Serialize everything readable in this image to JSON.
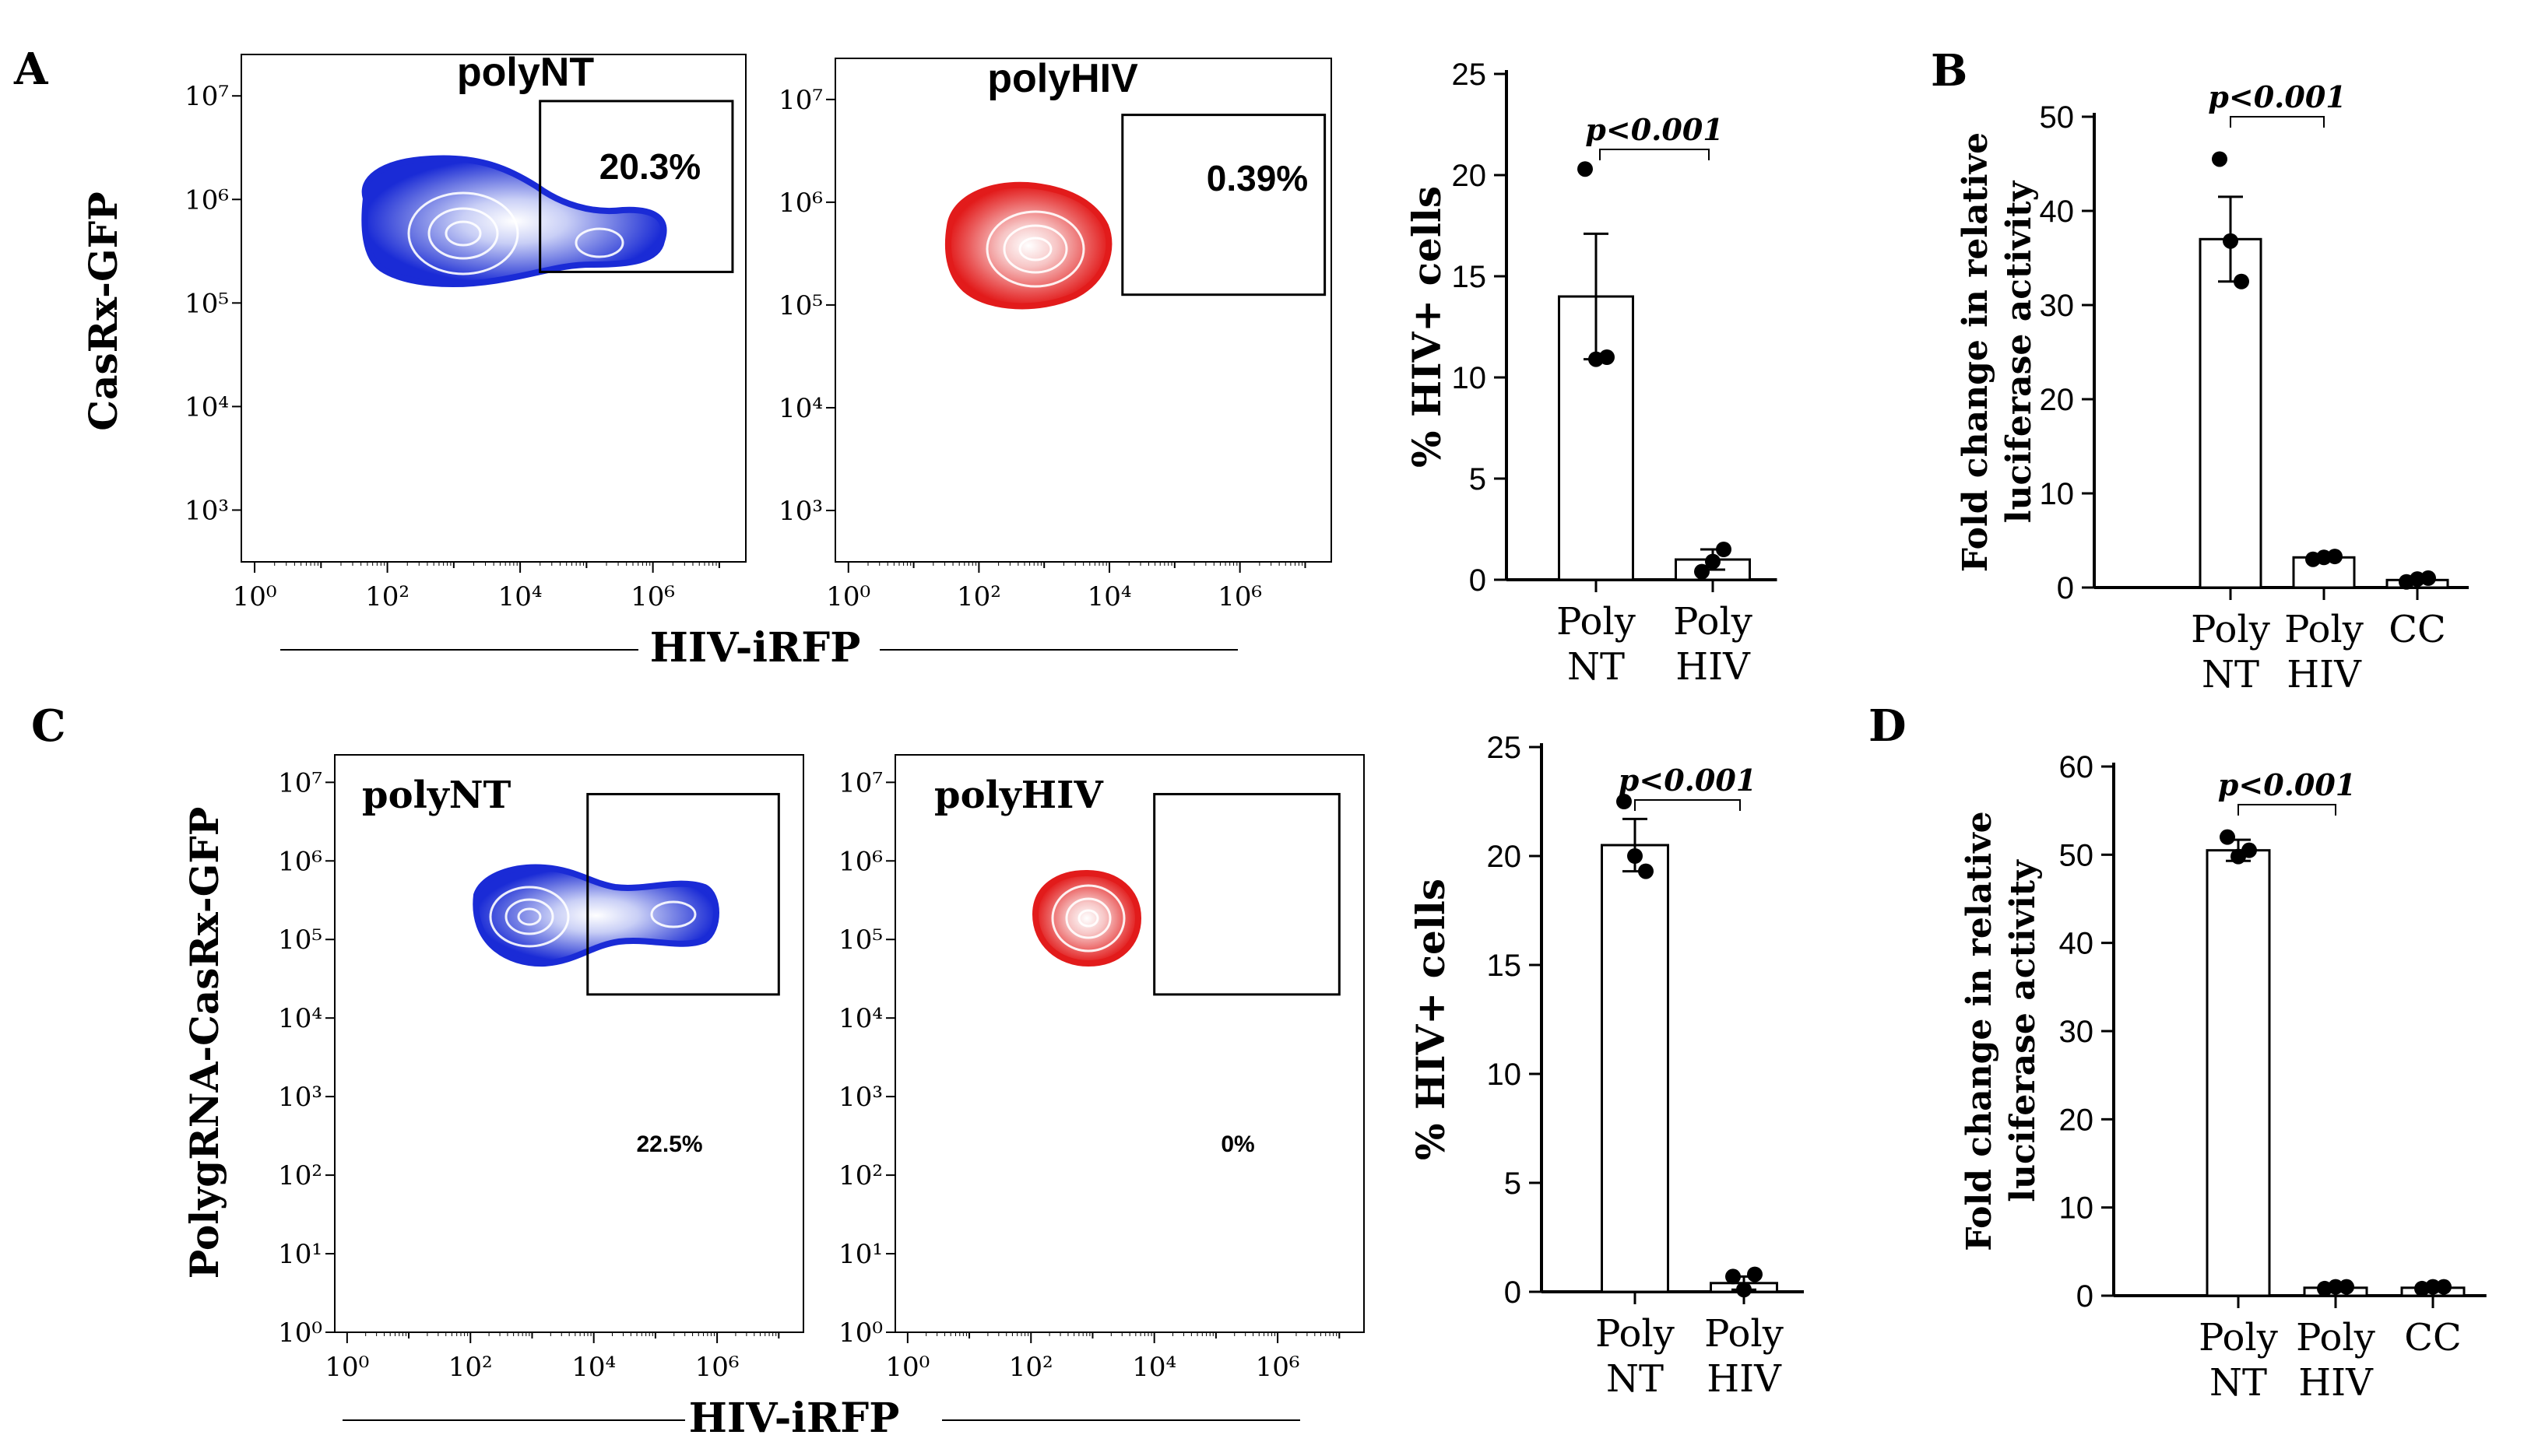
{
  "panel_labels": [
    "A",
    "B",
    "C",
    "D"
  ],
  "colors": {
    "nt": "#1a2bd6",
    "hiv": "#e21b1b",
    "axis": "#000000",
    "bar_fill": "#ffffff"
  },
  "chart_data": [
    {
      "id": "A-flow-polyNT",
      "type": "scatter",
      "subtype": "flow-contour",
      "title": "polyNT",
      "ylabel": "CasRx-GFP",
      "xlabel": "HIV-iRFP",
      "x_ticks": [
        "10⁰",
        "10²",
        "10⁴",
        "10⁶"
      ],
      "y_ticks": [
        "10³",
        "10⁴",
        "10⁵",
        "10⁶",
        "10⁷"
      ],
      "gate_label": "20.3%",
      "color": "#1a2bd6",
      "gate": {
        "x": [
          4.3,
          7.2
        ],
        "y": [
          5.3,
          6.95
        ]
      }
    },
    {
      "id": "A-flow-polyHIV",
      "type": "scatter",
      "subtype": "flow-contour",
      "title": "polyHIV",
      "xlabel": "HIV-iRFP",
      "x_ticks": [
        "10⁰",
        "10²",
        "10⁴",
        "10⁶"
      ],
      "y_ticks": [
        "10³",
        "10⁴",
        "10⁵",
        "10⁶",
        "10⁷"
      ],
      "gate_label": "0.39%",
      "color": "#e21b1b",
      "gate": {
        "x": [
          4.2,
          7.3
        ],
        "y": [
          5.1,
          6.85
        ]
      }
    },
    {
      "id": "A-bar",
      "type": "bar",
      "categories": [
        "Poly\nNT",
        "Poly\nHIV"
      ],
      "values": [
        14,
        1.0
      ],
      "errors": [
        3.1,
        0.5
      ],
      "points": [
        [
          20.3,
          10.9,
          11.0
        ],
        [
          0.4,
          0.9,
          1.5
        ]
      ],
      "ylabel": "% HIV+ cells",
      "ylim": [
        0,
        25
      ],
      "yticks": [
        0,
        5,
        10,
        15,
        20,
        25
      ],
      "annotation": "p<0.001"
    },
    {
      "id": "B-bar",
      "type": "bar",
      "categories": [
        "Poly\nNT",
        "Poly\nHIV",
        "CC"
      ],
      "values": [
        37,
        3.2,
        0.8
      ],
      "errors": [
        4.5,
        0.2,
        0.2
      ],
      "points": [
        [
          45.5,
          36.8,
          32.5
        ],
        [
          3.0,
          3.2,
          3.3
        ],
        [
          0.6,
          0.9,
          1.0
        ]
      ],
      "ylabel": "Fold change in relative\nluciferase activity",
      "ylim": [
        0,
        50
      ],
      "yticks": [
        0,
        10,
        20,
        30,
        40,
        50
      ],
      "annotation": "p<0.001"
    },
    {
      "id": "C-flow-polyNT",
      "type": "scatter",
      "subtype": "flow-contour",
      "title": "polyNT",
      "ylabel": "PolygRNA-CasRx-GFP",
      "xlabel": "HIV-iRFP",
      "x_ticks": [
        "10⁰",
        "10²",
        "10⁴",
        "10⁶"
      ],
      "y_ticks": [
        "10⁰",
        "10¹",
        "10²",
        "10³",
        "10⁴",
        "10⁵",
        "10⁶",
        "10⁷"
      ],
      "gate_label": "22.5%",
      "color": "#1a2bd6",
      "gate": {
        "x": [
          3.9,
          7.0
        ],
        "y": [
          4.3,
          6.85
        ]
      }
    },
    {
      "id": "C-flow-polyHIV",
      "type": "scatter",
      "subtype": "flow-contour",
      "title": "polyHIV",
      "x_ticks": [
        "10⁰",
        "10²",
        "10⁴",
        "10⁶"
      ],
      "y_ticks": [
        "10⁰",
        "10¹",
        "10²",
        "10³",
        "10⁴",
        "10⁵",
        "10⁶",
        "10⁷"
      ],
      "gate_label": "0%",
      "color": "#e21b1b",
      "gate": {
        "x": [
          4.0,
          7.0
        ],
        "y": [
          4.3,
          6.85
        ]
      }
    },
    {
      "id": "C-bar",
      "type": "bar",
      "categories": [
        "Poly\nNT",
        "Poly\nHIV"
      ],
      "values": [
        20.5,
        0.4
      ],
      "errors": [
        1.2,
        0.3
      ],
      "points": [
        [
          22.5,
          20.0,
          19.3
        ],
        [
          0.7,
          0.1,
          0.8
        ]
      ],
      "ylabel": "% HIV+ cells",
      "ylim": [
        0,
        25
      ],
      "yticks": [
        0,
        5,
        10,
        15,
        20,
        25
      ],
      "annotation": "p<0.001"
    },
    {
      "id": "D-bar",
      "type": "bar",
      "categories": [
        "Poly\nNT",
        "Poly\nHIV",
        "CC"
      ],
      "values": [
        50.5,
        0.9,
        0.9
      ],
      "errors": [
        1.2,
        0.1,
        0.1
      ],
      "points": [
        [
          52.0,
          49.8,
          50.5
        ],
        [
          0.8,
          1.0,
          1.0
        ],
        [
          0.8,
          1.0,
          1.0
        ]
      ],
      "ylabel": "Fold change in relative\nluciferase activity",
      "ylim": [
        0,
        60
      ],
      "yticks": [
        0,
        10,
        20,
        30,
        40,
        50,
        60
      ],
      "annotation": "p<0.001"
    }
  ]
}
